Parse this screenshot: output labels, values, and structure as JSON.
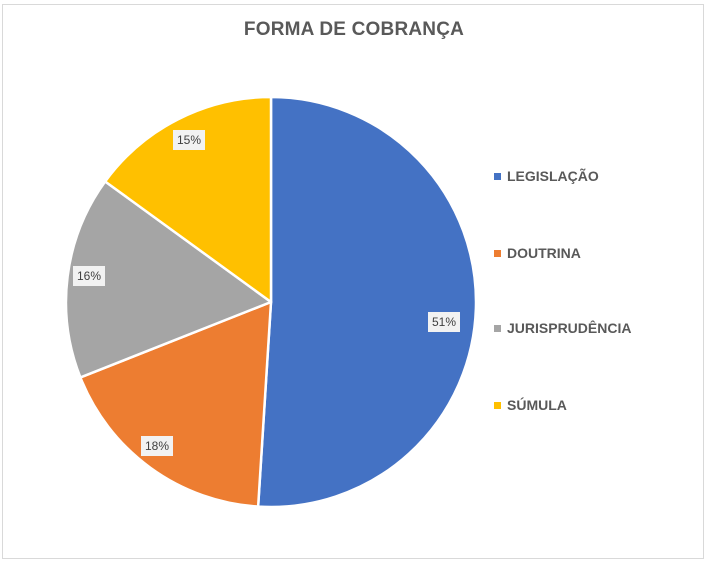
{
  "chart": {
    "title": "FORMA DE COBRANÇA"
  },
  "legend": [
    {
      "label": "LEGISLAÇÃO",
      "color": "#4472C4"
    },
    {
      "label": "DOUTRINA",
      "color": "#ED7D31"
    },
    {
      "label": "JURISPRUDÊNCIA",
      "color": "#A5A5A5"
    },
    {
      "label": "SÚMULA",
      "color": "#FFC000"
    }
  ],
  "labels": {
    "legislacao": "51%",
    "doutrina": "18%",
    "jurisprudencia": "16%",
    "sumula": "15%"
  },
  "chart_data": {
    "type": "pie",
    "title": "FORMA DE COBRANÇA",
    "categories": [
      "LEGISLAÇÃO",
      "DOUTRINA",
      "JURISPRUDÊNCIA",
      "SÚMULA"
    ],
    "values": [
      51,
      18,
      16,
      15
    ],
    "unit": "%",
    "colors": [
      "#4472C4",
      "#ED7D31",
      "#A5A5A5",
      "#FFC000"
    ],
    "start_angle": "12 o'clock, clockwise",
    "legend_position": "right",
    "data_labels": [
      "51%",
      "18%",
      "16%",
      "15%"
    ]
  }
}
